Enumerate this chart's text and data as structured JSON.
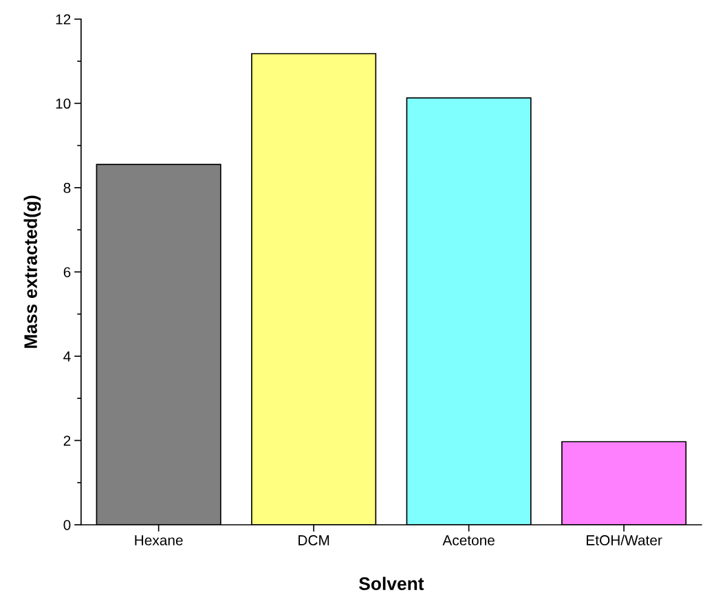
{
  "chart_data": {
    "type": "bar",
    "xlabel": "Solvent",
    "ylabel": "Mass extracted(g)",
    "categories": [
      "Hexane",
      "DCM",
      "Acetone",
      "EtOH/Water"
    ],
    "values": [
      8.55,
      11.18,
      10.13,
      1.97
    ],
    "colors": [
      "#808080",
      "#ffff80",
      "#80ffff",
      "#ff80ff"
    ],
    "ylim": [
      0,
      12
    ],
    "yticks": [
      0,
      {
        "value": 1,
        "label": null
      },
      2,
      {
        "value": 3,
        "label": null
      },
      4,
      {
        "value": 5,
        "label": null
      },
      6,
      {
        "value": 7,
        "label": null
      },
      8,
      {
        "value": 9,
        "label": null
      },
      10,
      {
        "value": 11,
        "label": null
      },
      12
    ],
    "grid": false,
    "legend": false
  }
}
